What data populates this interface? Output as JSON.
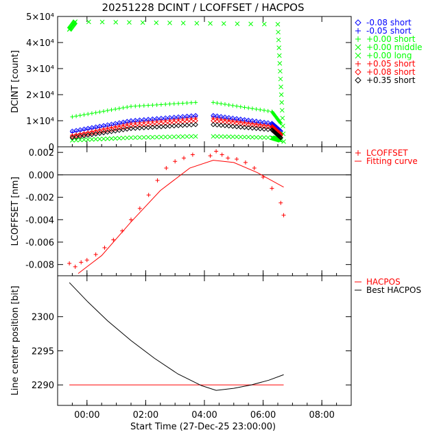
{
  "title": "20251228 DCINT / LCOFFSET / HACPOS",
  "xlabel": "Start Time (27-Dec-25 23:00:00)",
  "x_ticks": [
    "00:00",
    "02:00",
    "04:00",
    "06:00",
    "08:00"
  ],
  "colors": {
    "blue": "#0000ff",
    "green": "#00ff00",
    "red": "#ff0000",
    "black": "#000000"
  },
  "chart_data": [
    {
      "type": "scatter",
      "ylabel": "DCINT [count]",
      "ylim": [
        0,
        50000
      ],
      "y_ticks": [
        "0",
        "1×10⁴",
        "2×10⁴",
        "3×10⁴",
        "4×10⁴",
        "5×10⁴"
      ],
      "xlim_hours": [
        -1.0,
        9.0
      ],
      "legend": "right",
      "series": [
        {
          "name": "-0.08 short",
          "marker": "diamond",
          "color": "blue",
          "x": [
            -0.5,
            1.5,
            3.7,
            4.3,
            6.3,
            6.6
          ],
          "y": [
            6000,
            10000,
            12000,
            12000,
            9000,
            6000
          ]
        },
        {
          "name": "-0.05 short",
          "marker": "plus",
          "color": "blue",
          "x": [
            -0.5,
            1.5,
            3.7,
            4.3,
            6.3,
            6.6
          ],
          "y": [
            5500,
            9500,
            11500,
            11500,
            8500,
            5000
          ]
        },
        {
          "name": "+0.00 short",
          "marker": "plus",
          "color": "green",
          "x": [
            -0.5,
            1.5,
            3.7,
            4.3,
            6.3,
            6.6
          ],
          "y": [
            11500,
            15500,
            17000,
            17000,
            13500,
            9000
          ]
        },
        {
          "name": "+0.00 middle",
          "marker": "cross",
          "color": "green",
          "x": [
            -0.6,
            -0.4,
            6.5,
            6.7
          ],
          "y": [
            45000,
            48000,
            47000,
            2000
          ]
        },
        {
          "name": "+0.00 long",
          "marker": "cross",
          "color": "green",
          "x": [
            -0.5,
            1.5,
            3.7,
            4.3,
            6.3,
            6.6
          ],
          "y": [
            2500,
            3500,
            4000,
            4000,
            3500,
            2500
          ]
        },
        {
          "name": "+0.05 short",
          "marker": "plus",
          "color": "red",
          "x": [
            -0.5,
            1.5,
            3.7,
            4.3,
            6.3,
            6.6
          ],
          "y": [
            4500,
            9000,
            11000,
            11000,
            8000,
            5000
          ]
        },
        {
          "name": "+0.08 short",
          "marker": "diamond",
          "color": "red",
          "x": [
            -0.5,
            1.5,
            3.7,
            4.3,
            6.3,
            6.6
          ],
          "y": [
            4000,
            8000,
            10000,
            10000,
            7500,
            4500
          ]
        },
        {
          "name": "+0.35 short",
          "marker": "diamond",
          "color": "black",
          "x": [
            -0.5,
            1.5,
            3.7,
            4.3,
            6.3,
            6.6
          ],
          "y": [
            3500,
            7000,
            8500,
            8500,
            6500,
            3500
          ]
        }
      ]
    },
    {
      "type": "scatter",
      "ylabel": "LCOFFSET [nm]",
      "ylim": [
        -0.009,
        0.0025
      ],
      "y_ticks": [
        "-0.008",
        "-0.006",
        "-0.004",
        "-0.002",
        "0.000",
        "0.002"
      ],
      "legend": "right",
      "series": [
        {
          "name": "LCOFFSET",
          "marker": "plus",
          "color": "red",
          "x": [
            -0.6,
            -0.4,
            -0.2,
            0.0,
            0.3,
            0.6,
            0.9,
            1.2,
            1.5,
            1.8,
            2.1,
            2.4,
            2.7,
            3.0,
            3.3,
            3.6,
            4.2,
            4.4,
            4.6,
            4.8,
            5.1,
            5.4,
            5.7,
            6.0,
            6.3,
            6.6,
            6.7
          ],
          "y": [
            -0.0079,
            -0.0082,
            -0.0078,
            -0.0076,
            -0.0071,
            -0.0065,
            -0.0058,
            -0.005,
            -0.004,
            -0.003,
            -0.0018,
            -0.0005,
            0.0006,
            0.0012,
            0.0015,
            0.0018,
            0.0017,
            0.0021,
            0.0018,
            0.0015,
            0.0014,
            0.0011,
            0.0006,
            -0.0002,
            -0.0012,
            -0.0025,
            -0.0036
          ]
        },
        {
          "name": "Fitting curve",
          "marker": "line",
          "color": "red",
          "x": [
            -0.3,
            0.5,
            1.5,
            2.5,
            3.5,
            4.3,
            5.0,
            5.8,
            6.7
          ],
          "y": [
            -0.0088,
            -0.0072,
            -0.0042,
            -0.0014,
            0.0006,
            0.0013,
            0.0011,
            0.0002,
            -0.0011
          ]
        }
      ],
      "reference_line": 0
    },
    {
      "type": "line",
      "ylabel": "Line center position [bit]",
      "ylim": [
        2287,
        2306
      ],
      "y_ticks": [
        "2290",
        "2295",
        "2300"
      ],
      "legend": "right",
      "series": [
        {
          "name": "HACPOS",
          "color": "red",
          "x": [
            -0.6,
            6.7
          ],
          "y": [
            2290,
            2290
          ]
        },
        {
          "name": "Best HACPOS",
          "color": "black",
          "x": [
            -0.6,
            0.0,
            0.7,
            1.5,
            2.3,
            3.1,
            3.9,
            4.4,
            5.0,
            5.6,
            6.2,
            6.7
          ],
          "y": [
            2305.0,
            2302.3,
            2299.4,
            2296.5,
            2293.9,
            2291.6,
            2289.9,
            2289.2,
            2289.5,
            2290.0,
            2290.7,
            2291.5
          ]
        }
      ]
    }
  ]
}
